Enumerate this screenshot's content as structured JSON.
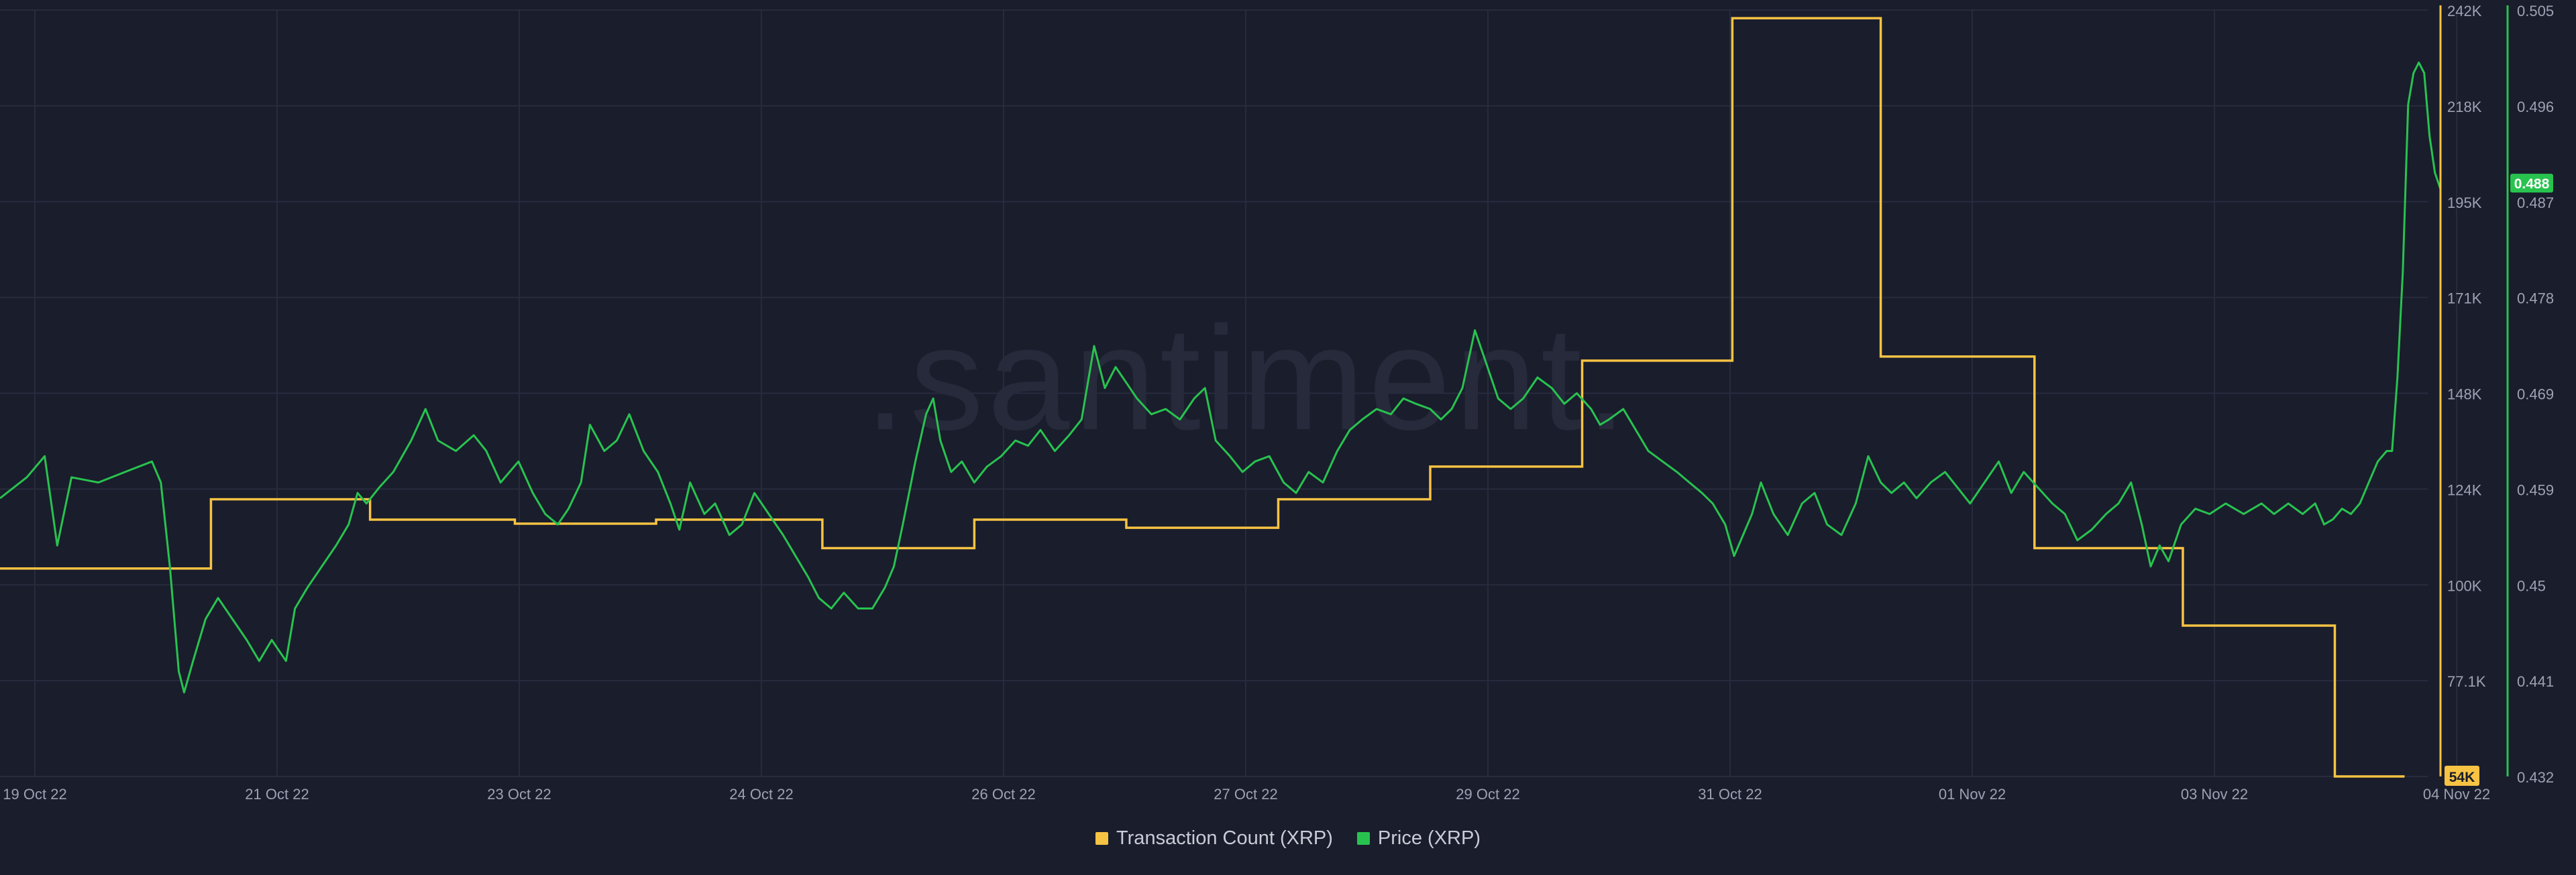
{
  "watermark": ".santiment.",
  "legend": {
    "tx_label": "Transaction Count (XRP)",
    "price_label": "Price (XRP)"
  },
  "colors": {
    "background": "#1a1d2c",
    "tx": "#f6c343",
    "price": "#28c34f",
    "grid": "#272b3c",
    "tick": "#9da2b3"
  },
  "badges": {
    "tx_current": "54K",
    "price_current": "0.488"
  },
  "chart_data": {
    "type": "line",
    "x_ticks": [
      "19 Oct 22",
      "21 Oct 22",
      "23 Oct 22",
      "24 Oct 22",
      "26 Oct 22",
      "27 Oct 22",
      "29 Oct 22",
      "31 Oct 22",
      "01 Nov 22",
      "03 Nov 22",
      "04 Nov 22"
    ],
    "y_left_ticks": [
      "242K",
      "218K",
      "195K",
      "171K",
      "148K",
      "124K",
      "100K",
      "77.1K",
      "54K"
    ],
    "y_right_ticks": [
      "0.505",
      "0.496",
      "0.487",
      "0.478",
      "0.469",
      "0.459",
      "0.45",
      "0.441",
      "0.432"
    ],
    "grid": true,
    "legend_position": "bottom-center",
    "series": [
      {
        "name": "Transaction Count (XRP)",
        "axis": "left",
        "ylim": [
          54000,
          242000
        ],
        "steps": [
          {
            "t": 0.0,
            "v": 105000
          },
          {
            "t": 1.18,
            "v": 122000
          },
          {
            "t": 2.07,
            "v": 117000
          },
          {
            "t": 2.88,
            "v": 116000
          },
          {
            "t": 3.67,
            "v": 117000
          },
          {
            "t": 4.6,
            "v": 110000
          },
          {
            "t": 5.45,
            "v": 117000
          },
          {
            "t": 6.3,
            "v": 115000
          },
          {
            "t": 7.15,
            "v": 122000
          },
          {
            "t": 8.0,
            "v": 130000
          },
          {
            "t": 8.85,
            "v": 156000
          },
          {
            "t": 9.69,
            "v": 240000
          },
          {
            "t": 10.52,
            "v": 157000
          },
          {
            "t": 11.38,
            "v": 110000
          },
          {
            "t": 12.21,
            "v": 91000
          },
          {
            "t": 13.06,
            "v": 54000
          },
          {
            "t": 13.45,
            "v": 54000
          }
        ]
      },
      {
        "name": "Price (XRP)",
        "axis": "right",
        "ylim": [
          0.432,
          0.505
        ],
        "points": [
          [
            0.0,
            0.4585
          ],
          [
            0.15,
            0.4605
          ],
          [
            0.25,
            0.4625
          ],
          [
            0.32,
            0.454
          ],
          [
            0.4,
            0.4605
          ],
          [
            0.55,
            0.46
          ],
          [
            0.7,
            0.461
          ],
          [
            0.85,
            0.462
          ],
          [
            0.9,
            0.46
          ],
          [
            0.95,
            0.452
          ],
          [
            0.97,
            0.448
          ],
          [
            1.0,
            0.442
          ],
          [
            1.03,
            0.44
          ],
          [
            1.08,
            0.443
          ],
          [
            1.15,
            0.447
          ],
          [
            1.22,
            0.449
          ],
          [
            1.3,
            0.447
          ],
          [
            1.38,
            0.445
          ],
          [
            1.45,
            0.443
          ],
          [
            1.52,
            0.445
          ],
          [
            1.6,
            0.443
          ],
          [
            1.65,
            0.448
          ],
          [
            1.72,
            0.45
          ],
          [
            1.8,
            0.452
          ],
          [
            1.88,
            0.454
          ],
          [
            1.95,
            0.456
          ],
          [
            2.0,
            0.459
          ],
          [
            2.05,
            0.458
          ],
          [
            2.12,
            0.4595
          ],
          [
            2.2,
            0.461
          ],
          [
            2.3,
            0.464
          ],
          [
            2.38,
            0.467
          ],
          [
            2.45,
            0.464
          ],
          [
            2.55,
            0.463
          ],
          [
            2.65,
            0.4645
          ],
          [
            2.72,
            0.463
          ],
          [
            2.8,
            0.46
          ],
          [
            2.9,
            0.462
          ],
          [
            2.98,
            0.459
          ],
          [
            3.05,
            0.457
          ],
          [
            3.12,
            0.456
          ],
          [
            3.18,
            0.4575
          ],
          [
            3.25,
            0.46
          ],
          [
            3.3,
            0.4655
          ],
          [
            3.38,
            0.463
          ],
          [
            3.45,
            0.464
          ],
          [
            3.52,
            0.4665
          ],
          [
            3.6,
            0.463
          ],
          [
            3.68,
            0.461
          ],
          [
            3.75,
            0.458
          ],
          [
            3.8,
            0.4555
          ],
          [
            3.86,
            0.46
          ],
          [
            3.94,
            0.457
          ],
          [
            4.0,
            0.458
          ],
          [
            4.08,
            0.455
          ],
          [
            4.15,
            0.456
          ],
          [
            4.22,
            0.459
          ],
          [
            4.3,
            0.457
          ],
          [
            4.38,
            0.455
          ],
          [
            4.45,
            0.453
          ],
          [
            4.52,
            0.451
          ],
          [
            4.58,
            0.449
          ],
          [
            4.65,
            0.448
          ],
          [
            4.72,
            0.4495
          ],
          [
            4.8,
            0.448
          ],
          [
            4.88,
            0.448
          ],
          [
            4.95,
            0.45
          ],
          [
            5.0,
            0.452
          ],
          [
            5.05,
            0.456
          ],
          [
            5.12,
            0.462
          ],
          [
            5.18,
            0.4665
          ],
          [
            5.22,
            0.468
          ],
          [
            5.26,
            0.464
          ],
          [
            5.32,
            0.461
          ],
          [
            5.38,
            0.462
          ],
          [
            5.45,
            0.46
          ],
          [
            5.52,
            0.4615
          ],
          [
            5.6,
            0.4625
          ],
          [
            5.68,
            0.464
          ],
          [
            5.75,
            0.4635
          ],
          [
            5.82,
            0.465
          ],
          [
            5.9,
            0.463
          ],
          [
            5.98,
            0.4645
          ],
          [
            6.05,
            0.466
          ],
          [
            6.12,
            0.473
          ],
          [
            6.18,
            0.469
          ],
          [
            6.24,
            0.471
          ],
          [
            6.3,
            0.4695
          ],
          [
            6.36,
            0.468
          ],
          [
            6.44,
            0.4665
          ],
          [
            6.52,
            0.467
          ],
          [
            6.6,
            0.466
          ],
          [
            6.68,
            0.468
          ],
          [
            6.74,
            0.469
          ],
          [
            6.8,
            0.464
          ],
          [
            6.88,
            0.4625
          ],
          [
            6.95,
            0.461
          ],
          [
            7.02,
            0.462
          ],
          [
            7.1,
            0.4625
          ],
          [
            7.18,
            0.46
          ],
          [
            7.25,
            0.459
          ],
          [
            7.32,
            0.461
          ],
          [
            7.4,
            0.46
          ],
          [
            7.48,
            0.463
          ],
          [
            7.55,
            0.465
          ],
          [
            7.62,
            0.466
          ],
          [
            7.7,
            0.467
          ],
          [
            7.78,
            0.4665
          ],
          [
            7.85,
            0.468
          ],
          [
            7.92,
            0.4675
          ],
          [
            8.0,
            0.467
          ],
          [
            8.06,
            0.466
          ],
          [
            8.12,
            0.467
          ],
          [
            8.18,
            0.469
          ],
          [
            8.25,
            0.4745
          ],
          [
            8.3,
            0.472
          ],
          [
            8.38,
            0.468
          ],
          [
            8.45,
            0.467
          ],
          [
            8.52,
            0.468
          ],
          [
            8.6,
            0.47
          ],
          [
            8.68,
            0.469
          ],
          [
            8.75,
            0.4675
          ],
          [
            8.82,
            0.4685
          ],
          [
            8.9,
            0.467
          ],
          [
            8.95,
            0.4655
          ],
          [
            9.0,
            0.466
          ],
          [
            9.08,
            0.467
          ],
          [
            9.15,
            0.465
          ],
          [
            9.22,
            0.463
          ],
          [
            9.3,
            0.462
          ],
          [
            9.38,
            0.461
          ],
          [
            9.45,
            0.46
          ],
          [
            9.52,
            0.459
          ],
          [
            9.58,
            0.458
          ],
          [
            9.65,
            0.456
          ],
          [
            9.7,
            0.453
          ],
          [
            9.75,
            0.455
          ],
          [
            9.8,
            0.457
          ],
          [
            9.85,
            0.46
          ],
          [
            9.92,
            0.457
          ],
          [
            10.0,
            0.455
          ],
          [
            10.08,
            0.458
          ],
          [
            10.15,
            0.459
          ],
          [
            10.22,
            0.456
          ],
          [
            10.3,
            0.455
          ],
          [
            10.38,
            0.458
          ],
          [
            10.45,
            0.4625
          ],
          [
            10.52,
            0.46
          ],
          [
            10.58,
            0.459
          ],
          [
            10.65,
            0.46
          ],
          [
            10.72,
            0.4585
          ],
          [
            10.8,
            0.46
          ],
          [
            10.88,
            0.461
          ],
          [
            10.95,
            0.4595
          ],
          [
            11.02,
            0.458
          ],
          [
            11.1,
            0.46
          ],
          [
            11.18,
            0.462
          ],
          [
            11.25,
            0.459
          ],
          [
            11.32,
            0.461
          ],
          [
            11.4,
            0.4595
          ],
          [
            11.48,
            0.458
          ],
          [
            11.55,
            0.457
          ],
          [
            11.62,
            0.4545
          ],
          [
            11.7,
            0.4555
          ],
          [
            11.78,
            0.457
          ],
          [
            11.85,
            0.458
          ],
          [
            11.92,
            0.46
          ],
          [
            11.98,
            0.456
          ],
          [
            12.03,
            0.452
          ],
          [
            12.08,
            0.454
          ],
          [
            12.13,
            0.4525
          ],
          [
            12.2,
            0.456
          ],
          [
            12.28,
            0.4575
          ],
          [
            12.36,
            0.457
          ],
          [
            12.45,
            0.458
          ],
          [
            12.55,
            0.457
          ],
          [
            12.65,
            0.458
          ],
          [
            12.72,
            0.457
          ],
          [
            12.8,
            0.458
          ],
          [
            12.88,
            0.457
          ],
          [
            12.95,
            0.458
          ],
          [
            13.0,
            0.456
          ],
          [
            13.05,
            0.4565
          ],
          [
            13.1,
            0.4575
          ],
          [
            13.15,
            0.457
          ],
          [
            13.2,
            0.458
          ],
          [
            13.25,
            0.46
          ],
          [
            13.3,
            0.462
          ],
          [
            13.35,
            0.463
          ],
          [
            13.38,
            0.463
          ],
          [
            13.41,
            0.47
          ],
          [
            13.44,
            0.48
          ],
          [
            13.47,
            0.496
          ],
          [
            13.5,
            0.499
          ],
          [
            13.53,
            0.5
          ],
          [
            13.56,
            0.499
          ],
          [
            13.59,
            0.493
          ],
          [
            13.62,
            0.4895
          ],
          [
            13.65,
            0.488
          ]
        ]
      }
    ]
  }
}
